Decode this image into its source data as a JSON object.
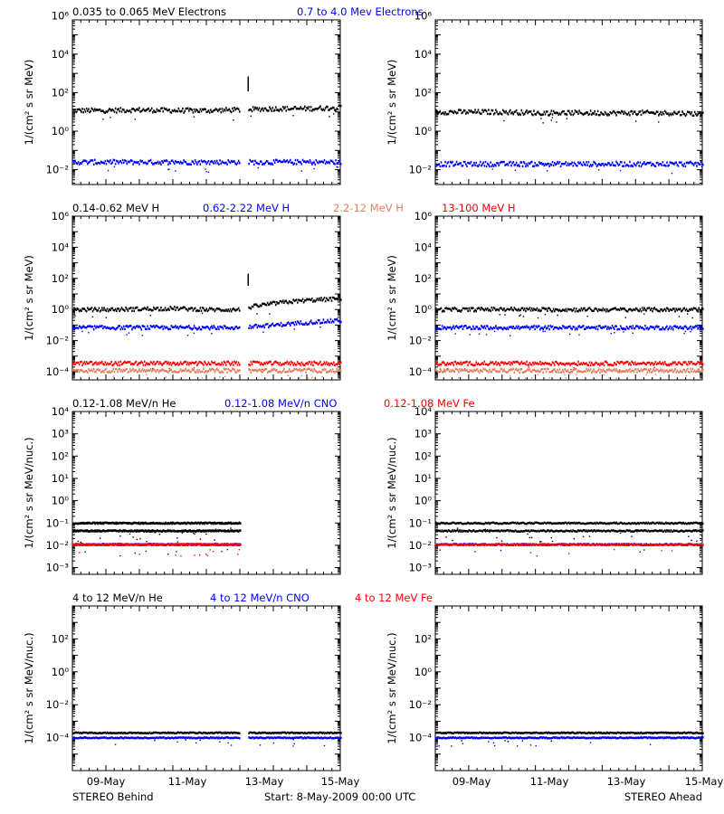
{
  "footer": {
    "left": "STEREO Behind",
    "center": "Start:  8-May-2009 00:00 UTC",
    "right": "STEREO Ahead"
  },
  "x_ticks": [
    "09-May",
    "11-May",
    "13-May",
    "15-May"
  ],
  "colors": {
    "black": "#000000",
    "blue": "#0000ff",
    "salmon": "#e08060",
    "red": "#ff0000"
  },
  "chart_data": [
    {
      "type": "scatter",
      "title_labels": [
        {
          "text": "0.035 to 0.065 MeV Electrons",
          "color": "black"
        },
        {
          "text": "0.7 to 4.0 Mev Electrons",
          "color": "blue"
        }
      ],
      "ylabel": "1/(cm² s sr MeV)",
      "yscale": "log",
      "ylim": [
        0.0017,
        600000
      ],
      "ytick_labels": [
        "10⁻²",
        "10⁰",
        "10²",
        "10⁴",
        "10⁶"
      ],
      "xlim_days": [
        0,
        8
      ],
      "panels": [
        {
          "spacecraft": "STEREO Behind",
          "data_gap_days": [
            5.0,
            5.25
          ],
          "series": [
            {
              "color": "black",
              "values": [
                12,
                12,
                13,
                12,
                12,
                13,
                15,
                15,
                17
              ]
            },
            {
              "color": "blue",
              "values": [
                0.025,
                0.025,
                0.025,
                0.025,
                0.025,
                0.025,
                0.025,
                0.025,
                0.025
              ]
            }
          ],
          "spikes": [
            {
              "day": 5.25,
              "value": 700,
              "color": "black"
            }
          ]
        },
        {
          "spacecraft": "STEREO Ahead",
          "series": [
            {
              "color": "black",
              "values": [
                10,
                10,
                10,
                9,
                9,
                9,
                9,
                9,
                8
              ]
            },
            {
              "color": "blue",
              "values": [
                0.02,
                0.02,
                0.02,
                0.02,
                0.02,
                0.02,
                0.02,
                0.02,
                0.02
              ]
            }
          ]
        }
      ]
    },
    {
      "type": "scatter",
      "title_labels": [
        {
          "text": "0.14-0.62 MeV H",
          "color": "black"
        },
        {
          "text": "0.62-2.22 MeV H",
          "color": "blue"
        },
        {
          "text": "2.2-12 MeV H",
          "color": "salmon"
        },
        {
          "text": "13-100 MeV H",
          "color": "red"
        }
      ],
      "ylabel": "1/(cm² s sr MeV)",
      "yscale": "log",
      "ylim": [
        3e-05,
        1000000
      ],
      "ytick_labels": [
        "10⁻⁴",
        "10⁻²",
        "10⁰",
        "10²",
        "10⁴",
        "10⁶"
      ],
      "xlim_days": [
        0,
        8
      ],
      "panels": [
        {
          "spacecraft": "STEREO Behind",
          "data_gap_days": [
            5.0,
            5.25
          ],
          "series": [
            {
              "color": "black",
              "values": [
                1.0,
                1.0,
                1.1,
                1.2,
                1.0,
                1.0,
                2.5,
                4.0,
                5.0
              ]
            },
            {
              "color": "blue",
              "values": [
                0.07,
                0.07,
                0.07,
                0.07,
                0.07,
                0.07,
                0.1,
                0.15,
                0.2
              ]
            },
            {
              "color": "red",
              "values": [
                0.00035,
                0.00035,
                0.00035,
                0.00035,
                0.00035,
                0.00035,
                0.00035,
                0.00035,
                0.00035
              ]
            },
            {
              "color": "salmon",
              "values": [
                0.00012,
                0.00012,
                0.00012,
                0.00012,
                0.00012,
                0.00012,
                0.00012,
                0.00012,
                0.00012
              ]
            }
          ],
          "spikes": [
            {
              "day": 5.25,
              "value": 200,
              "color": "black"
            }
          ]
        },
        {
          "spacecraft": "STEREO Ahead",
          "series": [
            {
              "color": "black",
              "values": [
                1.0,
                1.0,
                1.1,
                1.0,
                1.0,
                1.0,
                1.0,
                1.0,
                1.0
              ]
            },
            {
              "color": "blue",
              "values": [
                0.07,
                0.07,
                0.07,
                0.07,
                0.07,
                0.07,
                0.07,
                0.07,
                0.07
              ]
            },
            {
              "color": "red",
              "values": [
                0.00035,
                0.00035,
                0.00035,
                0.00035,
                0.00035,
                0.00035,
                0.00035,
                0.00035,
                0.00035
              ]
            },
            {
              "color": "salmon",
              "values": [
                0.00012,
                0.00012,
                0.00012,
                0.00012,
                0.00012,
                0.00012,
                0.00012,
                0.00012,
                0.00012
              ]
            }
          ]
        }
      ]
    },
    {
      "type": "scatter",
      "title_labels": [
        {
          "text": "0.12-1.08 MeV/n He",
          "color": "black"
        },
        {
          "text": "0.12-1.08 MeV/n CNO",
          "color": "blue"
        },
        {
          "text": "0.12-1.08 MeV Fe",
          "color": "red"
        }
      ],
      "ylabel": "1/(cm² s sr MeV/nuc.)",
      "yscale": "log",
      "ylim": [
        0.0005,
        10000
      ],
      "ytick_labels": [
        "10⁻³",
        "10⁻²",
        "10⁻¹",
        "10⁰",
        "10¹",
        "10²",
        "10³",
        "10⁴"
      ],
      "xlim_days": [
        0,
        8
      ],
      "panels": [
        {
          "spacecraft": "STEREO Behind",
          "data_end_day": 5.0,
          "series": [
            {
              "color": "black",
              "values": [
                0.1,
                0.1,
                0.1,
                0.1,
                0.1,
                0.1
              ]
            },
            {
              "color": "black",
              "values": [
                0.045,
                0.045,
                0.045,
                0.045,
                0.045,
                0.045
              ]
            },
            {
              "color": "blue",
              "values": [
                0.011,
                0.011,
                0.011,
                0.011,
                0.011,
                0.011
              ]
            },
            {
              "color": "red",
              "values": [
                0.011,
                0.011,
                0.011,
                0.011,
                0.011,
                0.011
              ]
            }
          ]
        },
        {
          "spacecraft": "STEREO Ahead",
          "series": [
            {
              "color": "black",
              "values": [
                0.1,
                0.1,
                0.1,
                0.1,
                0.1,
                0.1,
                0.1,
                0.1,
                0.1
              ]
            },
            {
              "color": "black",
              "values": [
                0.045,
                0.045,
                0.045,
                0.045,
                0.045,
                0.045,
                0.045,
                0.045,
                0.045
              ]
            },
            {
              "color": "blue",
              "values": [
                0.011,
                0.011,
                0.011,
                0.011,
                0.011,
                0.011,
                0.011,
                0.011,
                0.011
              ]
            },
            {
              "color": "red",
              "values": [
                0.011,
                0.011,
                0.011,
                0.011,
                0.011,
                0.011,
                0.011,
                0.011,
                0.011
              ]
            }
          ]
        }
      ]
    },
    {
      "type": "scatter",
      "title_labels": [
        {
          "text": "4 to 12 MeV/n He",
          "color": "black"
        },
        {
          "text": "4 to 12 MeV/n CNO",
          "color": "blue"
        },
        {
          "text": "4 to 12 MeV Fe",
          "color": "red"
        }
      ],
      "ylabel": "1/(cm² s sr MeV/nuc.)",
      "yscale": "log",
      "ylim": [
        1e-06,
        10000
      ],
      "ytick_labels": [
        "10⁻⁴",
        "10⁻²",
        "10⁰",
        "10²"
      ],
      "xlim_days": [
        0,
        8
      ],
      "panels": [
        {
          "spacecraft": "STEREO Behind",
          "data_gap_days": [
            5.0,
            5.25
          ],
          "series": [
            {
              "color": "black",
              "values": [
                0.0002,
                0.0002,
                0.0002,
                0.0002,
                0.0002,
                0.0002,
                0.0002,
                0.0002,
                0.0002
              ]
            },
            {
              "color": "blue",
              "values": [
                0.0001,
                0.0001,
                0.0001,
                0.0001,
                0.0001,
                0.0001,
                0.0001,
                0.0001,
                0.0001
              ]
            }
          ]
        },
        {
          "spacecraft": "STEREO Ahead",
          "series": [
            {
              "color": "black",
              "values": [
                0.0002,
                0.0002,
                0.0002,
                0.0002,
                0.0002,
                0.0002,
                0.0002,
                0.0002,
                0.0002
              ]
            },
            {
              "color": "blue",
              "values": [
                0.0001,
                0.0001,
                0.0001,
                0.0001,
                0.0001,
                0.0001,
                0.0001,
                0.0001,
                0.0001
              ]
            }
          ]
        }
      ]
    }
  ]
}
